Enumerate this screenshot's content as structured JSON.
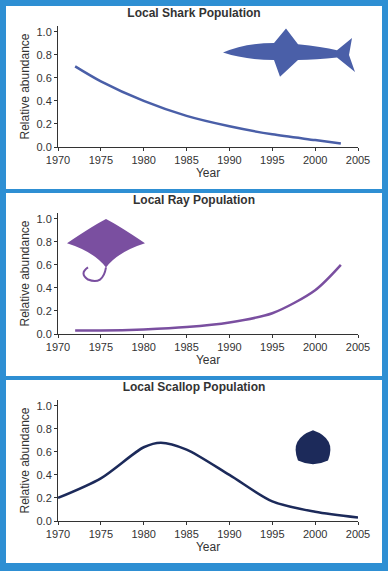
{
  "chart_data": [
    {
      "type": "line",
      "title": "Local Shark Population",
      "xlabel": "Year",
      "ylabel": "Relative abundance",
      "x": [
        1972,
        1975,
        1980,
        1985,
        1990,
        1995,
        2000,
        2003
      ],
      "values": [
        0.7,
        0.57,
        0.4,
        0.27,
        0.18,
        0.11,
        0.06,
        0.03
      ],
      "color": "#4a5fa8",
      "xlim": [
        1970,
        2005
      ],
      "xticks": [
        1970,
        1975,
        1980,
        1985,
        1990,
        1995,
        2000,
        2005
      ],
      "ylim": [
        0,
        1.05
      ],
      "yticks": [
        {
          "value": 0,
          "label": "0.0"
        },
        0.2,
        0.4,
        0.6,
        0.8,
        {
          "value": 1,
          "label": "1.0"
        }
      ],
      "grid": false
    },
    {
      "type": "line",
      "title": "Local Ray Population",
      "xlabel": "Year",
      "ylabel": "Relative abundance",
      "x": [
        1972,
        1975,
        1980,
        1985,
        1990,
        1995,
        2000,
        2003
      ],
      "values": [
        0.03,
        0.03,
        0.04,
        0.06,
        0.1,
        0.18,
        0.38,
        0.6
      ],
      "color": "#7a4fa0",
      "xlim": [
        1970,
        2005
      ],
      "xticks": [
        1970,
        1975,
        1980,
        1985,
        1990,
        1995,
        2000,
        2005
      ],
      "ylim": [
        0,
        1.05
      ],
      "yticks": [
        {
          "value": 0,
          "label": "0.0"
        },
        0.2,
        0.4,
        0.6,
        0.8,
        {
          "value": 1,
          "label": "1.0"
        }
      ],
      "grid": false
    },
    {
      "type": "line",
      "title": "Local Scallop Population",
      "xlabel": "Year",
      "ylabel": "Relative abundance",
      "x": [
        1970,
        1975,
        1980,
        1982,
        1985,
        1990,
        1995,
        2000,
        2005
      ],
      "values": [
        0.2,
        0.37,
        0.64,
        0.68,
        0.62,
        0.4,
        0.17,
        0.08,
        0.03
      ],
      "color": "#1c2a5a",
      "xlim": [
        1970,
        2005
      ],
      "xticks": [
        1970,
        1975,
        1980,
        1985,
        1990,
        1995,
        2000,
        2005
      ],
      "ylim": [
        0,
        1.05
      ],
      "yticks": [
        {
          "value": 0,
          "label": "0.0"
        },
        0.2,
        0.4,
        0.6,
        0.8,
        {
          "value": 1,
          "label": "1.0"
        }
      ],
      "grid": false
    }
  ]
}
